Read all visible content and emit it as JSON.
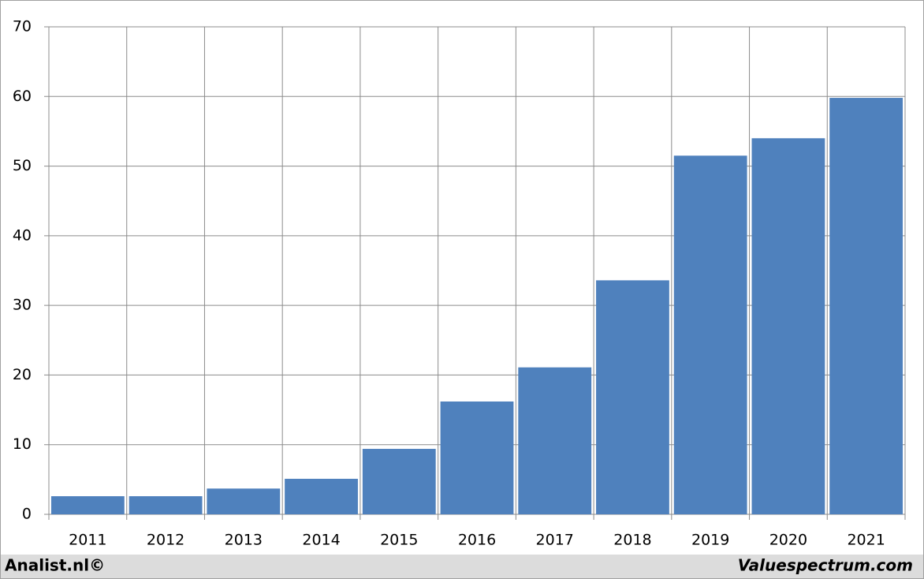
{
  "chart_data": {
    "type": "bar",
    "categories": [
      "2011",
      "2012",
      "2013",
      "2014",
      "2015",
      "2016",
      "2017",
      "2018",
      "2019",
      "2020",
      "2021"
    ],
    "values": [
      2.6,
      2.6,
      3.7,
      5.1,
      9.4,
      16.2,
      21.1,
      33.6,
      51.5,
      54.0,
      59.8
    ],
    "color": "#4f81bd",
    "ylim": [
      0,
      70
    ],
    "yticks": [
      0,
      10,
      20,
      30,
      40,
      50,
      60,
      70
    ],
    "grid": true,
    "annotations": [
      "Analist.nl©",
      "Valuespectrum.com"
    ]
  }
}
